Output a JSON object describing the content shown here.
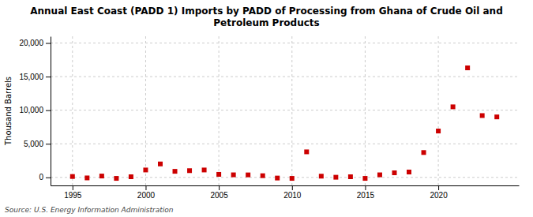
{
  "chart_data": {
    "type": "scatter",
    "title": "Annual East Coast (PADD 1) Imports by PADD of Processing from Ghana of Crude Oil and\nPetroleum Products",
    "ylabel": "Thousand Barrels",
    "annotations": [
      "Source: U.S. Energy Information Administration"
    ],
    "x": [
      1995,
      1996,
      1997,
      1998,
      1999,
      2000,
      2001,
      2002,
      2003,
      2004,
      2005,
      2006,
      2007,
      2008,
      2009,
      2010,
      2011,
      2012,
      2013,
      2014,
      2015,
      2016,
      2017,
      2018,
      2019,
      2020,
      2021,
      2022,
      2023,
      2024
    ],
    "values": [
      130,
      -80,
      200,
      -150,
      90,
      1100,
      2000,
      900,
      1000,
      1100,
      450,
      380,
      370,
      250,
      -100,
      -150,
      3800,
      180,
      20,
      90,
      -150,
      380,
      680,
      800,
      3700,
      6900,
      10500,
      16300,
      9200,
      9000
    ],
    "color": "#cc0000",
    "marker": "square",
    "xlim": [
      1993.5,
      2025.5
    ],
    "ylim": [
      -1200,
      21000
    ],
    "xticks": [
      1995,
      2000,
      2005,
      2010,
      2015,
      2020
    ],
    "yticks": [
      0,
      {
        "value": 5000,
        "label": "5,000"
      },
      {
        "value": 10000,
        "label": "10,000"
      },
      {
        "value": 15000,
        "label": "15,000"
      },
      {
        "value": 20000,
        "label": "20,000"
      }
    ],
    "grid": true
  }
}
